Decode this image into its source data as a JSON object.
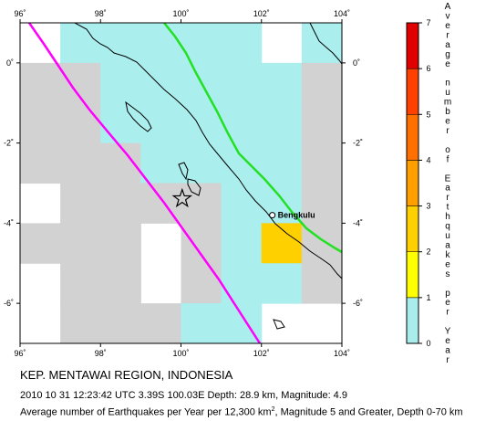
{
  "map": {
    "lon_ticks": [
      "96˚",
      "98˚",
      "100˚",
      "102˚",
      "104˚"
    ],
    "lat_ticks": [
      "0˚",
      "-2˚",
      "-4˚",
      "-6˚"
    ],
    "lon_range": [
      96,
      104
    ],
    "lat_range": [
      -7,
      1
    ],
    "cell_size_deg": 1,
    "ocean_color": "#ffffff",
    "land_color": "#ffffff",
    "coast_color": "#000000",
    "trench_color": "#ff00ff",
    "plate_boundary_color": "#00dd00",
    "grid_rows": [
      {
        "lat": 0.5,
        "values": [
          "",
          "0.5",
          "0.5",
          "0.5",
          "0.5",
          "0.5",
          "",
          "0.5"
        ]
      },
      {
        "lat": -0.5,
        "values": [
          "0",
          "0",
          "0.5",
          "0.5",
          "0.5",
          "0.5",
          "0.5",
          "0"
        ]
      },
      {
        "lat": -1.5,
        "values": [
          "0",
          "0",
          "0.5",
          "0.5",
          "0.5",
          "0.5",
          "0.5",
          "0"
        ]
      },
      {
        "lat": -2.5,
        "values": [
          "0",
          "0",
          "0",
          "0.5",
          "0.5",
          "0.5",
          "0.5",
          "0"
        ]
      },
      {
        "lat": -3.5,
        "values": [
          "",
          "0",
          "0",
          "0",
          "0",
          "0.5",
          "0.5",
          "0"
        ]
      },
      {
        "lat": -4.5,
        "values": [
          "0",
          "0",
          "0",
          "",
          "0",
          "0.5",
          "2",
          "0"
        ]
      },
      {
        "lat": -5.5,
        "values": [
          "",
          "0",
          "0",
          "",
          "0",
          "0.5",
          "0.5",
          "0"
        ]
      },
      {
        "lat": -6.5,
        "values": [
          "",
          "0",
          "0",
          "0",
          "0.5",
          "0.5",
          "",
          ""
        ]
      }
    ]
  },
  "markers": {
    "epicenter": {
      "name": "star-icon",
      "lon": 100.03,
      "lat": -3.39
    },
    "city": {
      "name": "Bengkulu",
      "lon": 102.27,
      "lat": -3.8
    }
  },
  "colorbar": {
    "ticks": [
      "0",
      "1",
      "2",
      "3",
      "4",
      "5",
      "6",
      "7"
    ],
    "title": "Average number of Earthquakes per Year",
    "colors": {
      "0-1": "#a8ecec",
      "1-2": "#ffff00",
      "2-3": "#ffd000",
      "3-4": "#ffa000",
      "4-5": "#ff7000",
      "5-6": "#ff4000",
      "6-7": "#e00000"
    }
  },
  "caption": {
    "title": "KEP. MENTAWAI REGION, INDONESIA",
    "info": "2010 10 31 12:23:42 UTC 3.39S 100.03E Depth: 28.9 km, Magnitude: 4.9",
    "desc_before": "Average number of Earthquakes per Year per 12,300 km",
    "desc_sup": "2",
    "desc_after": ", Magnitude 5 and Greater, Depth 0-70 km"
  }
}
